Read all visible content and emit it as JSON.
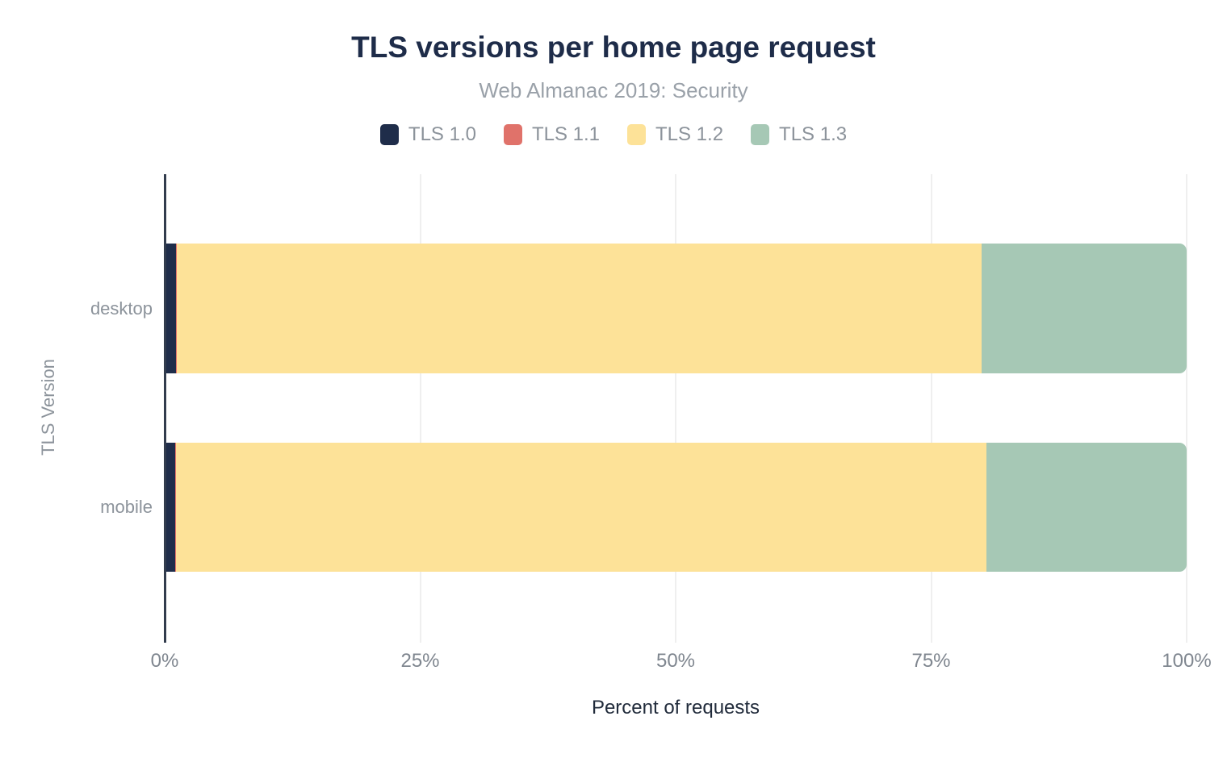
{
  "header": {
    "title": "TLS versions per home page request",
    "subtitle": "Web Almanac 2019: Security"
  },
  "chart_data": {
    "type": "bar",
    "orientation": "horizontal",
    "stacked": true,
    "title": "TLS versions per home page request",
    "subtitle": "Web Almanac 2019: Security",
    "categories": [
      "desktop",
      "mobile"
    ],
    "series": [
      {
        "name": "TLS 1.0",
        "color": "#1f2d4a",
        "values": [
          1.1,
          1.0
        ]
      },
      {
        "name": "TLS 1.1",
        "color": "#e0726a",
        "values": [
          0.1,
          0.1
        ]
      },
      {
        "name": "TLS 1.2",
        "color": "#fde298",
        "values": [
          78.7,
          79.3
        ]
      },
      {
        "name": "TLS 1.3",
        "color": "#a6c8b5",
        "values": [
          20.1,
          19.6
        ]
      }
    ],
    "xlabel": "Percent of requests",
    "ylabel": "TLS Version",
    "xlim": [
      0,
      100
    ],
    "xticks": [
      0,
      25,
      50,
      75,
      100
    ],
    "xtick_labels": [
      "0%",
      "25%",
      "50%",
      "75%",
      "100%"
    ],
    "legend_position": "top",
    "grid": "vertical-quarter-gridlines"
  },
  "colors": {
    "title_text": "#1e2c49",
    "subtitle_text": "#9aa1a9",
    "axis_text": "#8c939b",
    "tick_text": "#7f868f",
    "xlabel_text": "#212b3b",
    "gridline": "#efefef",
    "axis_line": "#323c4d",
    "background": "#ffffff"
  }
}
